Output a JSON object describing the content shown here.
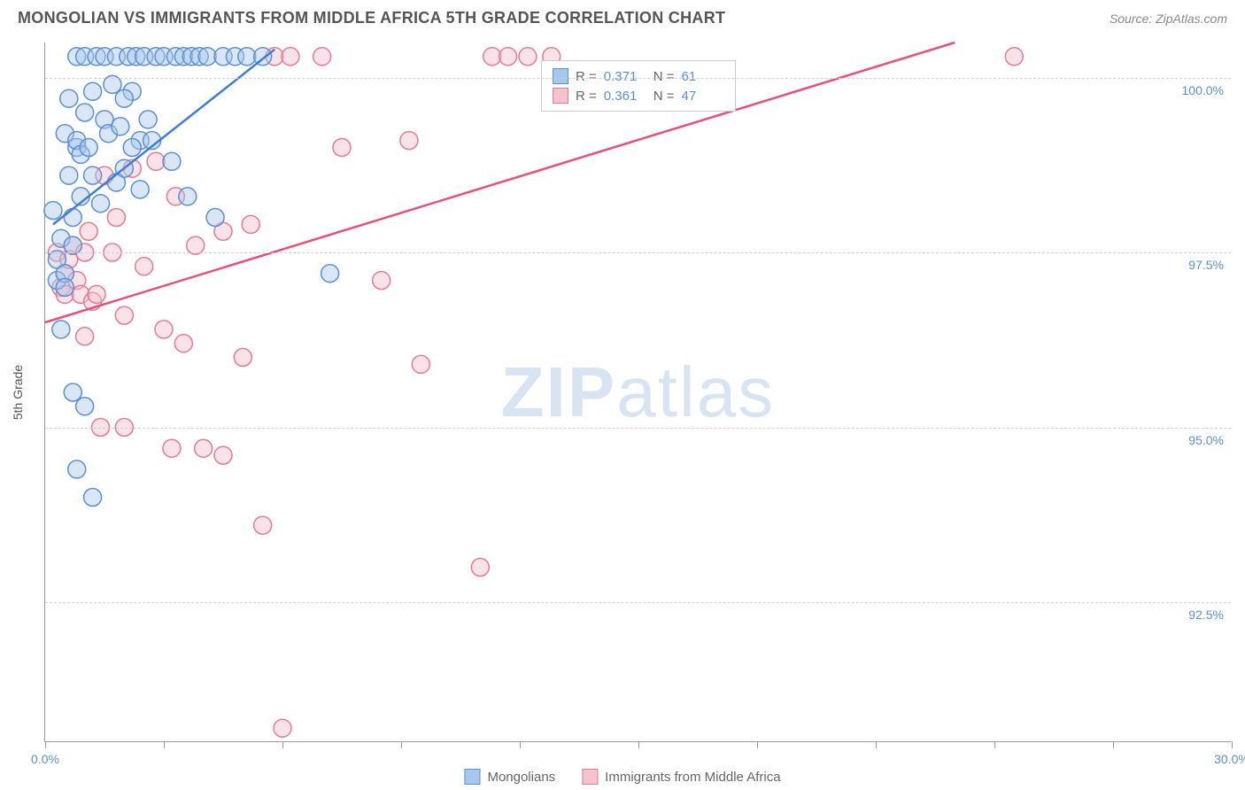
{
  "header": {
    "title": "MONGOLIAN VS IMMIGRANTS FROM MIDDLE AFRICA 5TH GRADE CORRELATION CHART",
    "source": "Source: ZipAtlas.com"
  },
  "chart": {
    "type": "scatter",
    "ylabel": "5th Grade",
    "watermark_bold": "ZIP",
    "watermark_light": "atlas",
    "background_color": "#ffffff",
    "grid_color": "#d0d0d0",
    "axis_color": "#999999",
    "tick_label_color": "#5b8fd6",
    "xlim": [
      0.0,
      30.0
    ],
    "ylim": [
      90.5,
      100.5
    ],
    "x_ticks": [
      0.0,
      3.0,
      6.0,
      9.0,
      12.0,
      15.0,
      18.0,
      21.0,
      24.0,
      27.0,
      30.0
    ],
    "x_tick_labels": {
      "0": "0.0%",
      "30": "30.0%"
    },
    "y_ticks": [
      92.5,
      95.0,
      97.5,
      100.0
    ],
    "y_tick_labels": [
      "92.5%",
      "95.0%",
      "97.5%",
      "100.0%"
    ],
    "marker_radius": 10,
    "marker_opacity": 0.45,
    "line_width": 2.5,
    "series_a": {
      "name": "Mongolians",
      "fill": "#a8c7ec",
      "stroke": "#5b8fd6",
      "line_color": "#3b7dd8",
      "r": "0.371",
      "n": "61",
      "points": [
        [
          0.2,
          98.1
        ],
        [
          0.3,
          97.1
        ],
        [
          0.3,
          97.4
        ],
        [
          0.4,
          97.7
        ],
        [
          0.4,
          96.4
        ],
        [
          0.5,
          99.2
        ],
        [
          0.5,
          97.2
        ],
        [
          0.5,
          97.0
        ],
        [
          0.6,
          98.6
        ],
        [
          0.6,
          99.7
        ],
        [
          0.7,
          98.0
        ],
        [
          0.7,
          97.6
        ],
        [
          0.8,
          99.0
        ],
        [
          0.8,
          100.3
        ],
        [
          0.8,
          99.1
        ],
        [
          0.9,
          98.3
        ],
        [
          0.9,
          98.9
        ],
        [
          1.0,
          99.5
        ],
        [
          1.0,
          100.3
        ],
        [
          1.1,
          99.0
        ],
        [
          1.2,
          98.6
        ],
        [
          1.2,
          99.8
        ],
        [
          1.3,
          100.3
        ],
        [
          1.4,
          98.2
        ],
        [
          1.5,
          100.3
        ],
        [
          1.5,
          99.4
        ],
        [
          1.6,
          99.2
        ],
        [
          1.7,
          99.9
        ],
        [
          1.8,
          100.3
        ],
        [
          1.9,
          99.3
        ],
        [
          2.0,
          98.7
        ],
        [
          2.1,
          100.3
        ],
        [
          2.2,
          99.8
        ],
        [
          2.3,
          100.3
        ],
        [
          2.4,
          99.1
        ],
        [
          2.5,
          100.3
        ],
        [
          2.6,
          99.4
        ],
        [
          2.8,
          100.3
        ],
        [
          3.0,
          100.3
        ],
        [
          3.2,
          98.8
        ],
        [
          3.3,
          100.3
        ],
        [
          3.5,
          100.3
        ],
        [
          3.6,
          98.3
        ],
        [
          3.7,
          100.3
        ],
        [
          3.9,
          100.3
        ],
        [
          4.1,
          100.3
        ],
        [
          4.3,
          98.0
        ],
        [
          4.5,
          100.3
        ],
        [
          4.8,
          100.3
        ],
        [
          5.1,
          100.3
        ],
        [
          5.5,
          100.3
        ],
        [
          0.7,
          95.5
        ],
        [
          1.0,
          95.3
        ],
        [
          0.8,
          94.4
        ],
        [
          1.2,
          94.0
        ],
        [
          7.2,
          97.2
        ],
        [
          2.2,
          99.0
        ],
        [
          1.8,
          98.5
        ],
        [
          2.0,
          99.7
        ],
        [
          2.4,
          98.4
        ],
        [
          2.7,
          99.1
        ]
      ],
      "regression": {
        "x1": 0.2,
        "y1": 97.9,
        "x2": 5.8,
        "y2": 100.4
      }
    },
    "series_b": {
      "name": "Immigrants from Middle Africa",
      "fill": "#f5c2cd",
      "stroke": "#e77a93",
      "line_color": "#e94f77",
      "r": "0.361",
      "n": "47",
      "points": [
        [
          0.3,
          97.5
        ],
        [
          0.4,
          97.0
        ],
        [
          0.5,
          97.2
        ],
        [
          0.5,
          96.9
        ],
        [
          0.6,
          97.4
        ],
        [
          0.7,
          97.6
        ],
        [
          0.8,
          97.1
        ],
        [
          0.9,
          96.9
        ],
        [
          1.0,
          97.5
        ],
        [
          1.1,
          97.8
        ],
        [
          1.2,
          96.8
        ],
        [
          1.3,
          96.9
        ],
        [
          1.5,
          98.6
        ],
        [
          1.8,
          98.0
        ],
        [
          2.0,
          96.6
        ],
        [
          2.2,
          98.7
        ],
        [
          2.5,
          97.3
        ],
        [
          2.8,
          98.8
        ],
        [
          3.0,
          96.4
        ],
        [
          3.3,
          98.3
        ],
        [
          3.5,
          96.2
        ],
        [
          3.8,
          97.6
        ],
        [
          4.0,
          94.7
        ],
        [
          4.5,
          97.8
        ],
        [
          5.0,
          96.0
        ],
        [
          5.2,
          97.9
        ],
        [
          5.5,
          93.6
        ],
        [
          5.8,
          100.3
        ],
        [
          6.2,
          100.3
        ],
        [
          7.0,
          100.3
        ],
        [
          7.5,
          99.0
        ],
        [
          8.5,
          97.1
        ],
        [
          9.2,
          99.1
        ],
        [
          9.5,
          95.9
        ],
        [
          11.3,
          100.3
        ],
        [
          11.7,
          100.3
        ],
        [
          12.2,
          100.3
        ],
        [
          12.8,
          100.3
        ],
        [
          2.0,
          95.0
        ],
        [
          3.2,
          94.7
        ],
        [
          4.5,
          94.6
        ],
        [
          11.0,
          93.0
        ],
        [
          24.5,
          100.3
        ],
        [
          1.0,
          96.3
        ],
        [
          1.4,
          95.0
        ],
        [
          6.0,
          90.7
        ],
        [
          1.7,
          97.5
        ]
      ],
      "regression": {
        "x1": 0.0,
        "y1": 96.5,
        "x2": 23.0,
        "y2": 100.5
      }
    }
  },
  "stats_box": {
    "r_label": "R =",
    "n_label": "N ="
  },
  "legend": {
    "a": "Mongolians",
    "b": "Immigrants from Middle Africa"
  }
}
